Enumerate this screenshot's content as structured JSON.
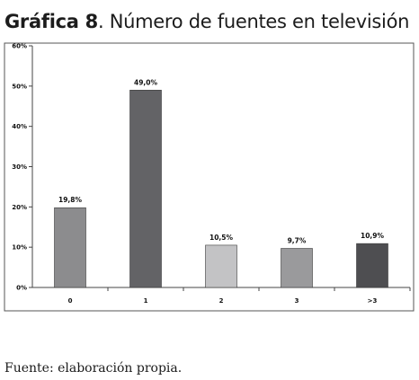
{
  "page": {
    "title_prefix": "Gráfica 8",
    "title_rest": ". Número de fuentes en televisión",
    "source": "Fuente: elaboración propia."
  },
  "chart_data": {
    "type": "bar",
    "title": "Gráfica 8. Número de fuentes en televisión",
    "categories": [
      "0",
      "1",
      "2",
      "3",
      ">3"
    ],
    "values": [
      19.8,
      49.0,
      10.5,
      9.7,
      10.9
    ],
    "data_labels": [
      "19,8%",
      "49,0%",
      "10,5%",
      "9,7%",
      "10,9%"
    ],
    "bar_colors": [
      "#8c8c8e",
      "#636366",
      "#c3c3c5",
      "#9a9a9c",
      "#4e4e51"
    ],
    "ylim": [
      0,
      60
    ],
    "yticks": [
      0,
      10,
      20,
      30,
      40,
      50,
      60
    ],
    "ytick_labels": [
      "0%",
      "10%",
      "20%",
      "30%",
      "40%",
      "50%",
      "60%"
    ],
    "xlabel": "",
    "ylabel": "",
    "grid": false,
    "legend": "none"
  }
}
